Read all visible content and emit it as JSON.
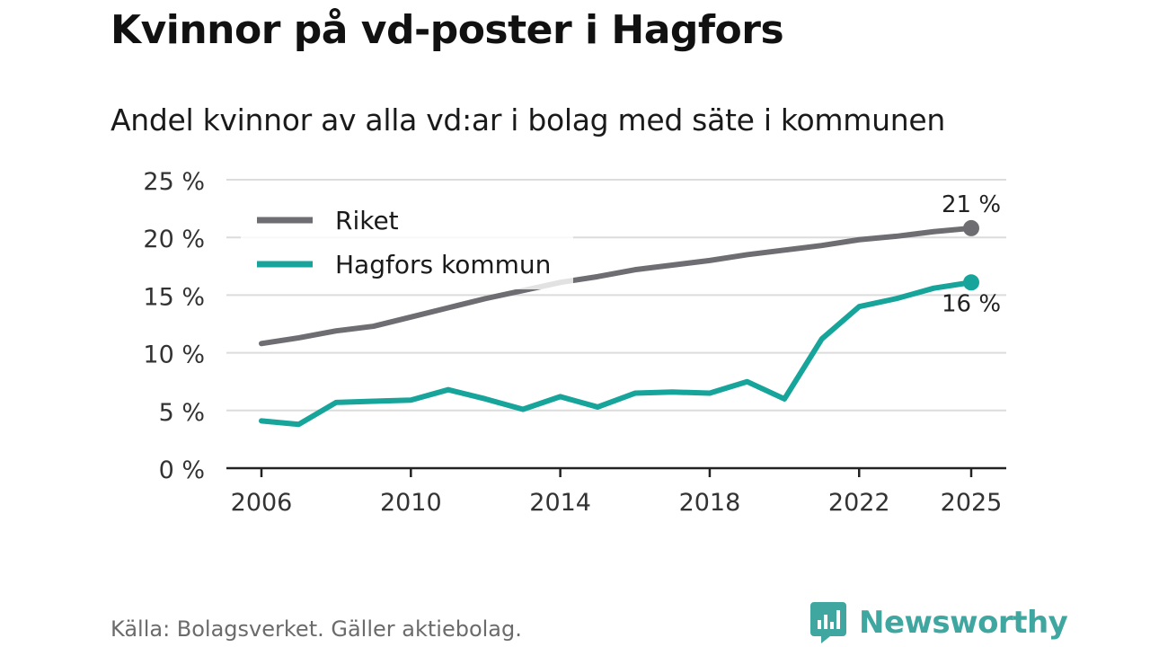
{
  "title": "Kvinnor på vd-poster i Hagfors",
  "subtitle": "Andel kvinnor av alla vd:ar i bolag med säte i kommunen",
  "source": "Källa: Bolagsverket. Gäller aktiebolag.",
  "brand": "Newsworthy",
  "chart_data": {
    "type": "line",
    "x": [
      2006,
      2007,
      2008,
      2009,
      2010,
      2011,
      2012,
      2013,
      2014,
      2015,
      2016,
      2017,
      2018,
      2019,
      2020,
      2021,
      2022,
      2023,
      2024,
      2025
    ],
    "series": [
      {
        "name": "Riket",
        "color": "#6e6e72",
        "values": [
          10.8,
          11.3,
          11.9,
          12.3,
          13.1,
          13.9,
          14.7,
          15.4,
          16.1,
          16.6,
          17.2,
          17.6,
          18.0,
          18.5,
          18.9,
          19.3,
          19.8,
          20.1,
          20.5,
          20.8
        ],
        "end_label": "21 %"
      },
      {
        "name": "Hagfors kommun",
        "color": "#16a49b",
        "values": [
          4.1,
          3.8,
          5.7,
          5.8,
          5.9,
          6.8,
          6.0,
          5.1,
          6.2,
          5.3,
          6.5,
          6.6,
          6.5,
          7.5,
          6.0,
          11.2,
          14.0,
          14.7,
          15.6,
          16.1
        ],
        "end_label": "16 %"
      }
    ],
    "y_ticks": [
      "0 %",
      "5 %",
      "10 %",
      "15 %",
      "20 %",
      "25 %"
    ],
    "x_ticks": [
      "2006",
      "2010",
      "2014",
      "2018",
      "2022",
      "2025"
    ],
    "ylim": [
      0,
      25
    ],
    "grid": true,
    "legend_position": "top-left"
  }
}
